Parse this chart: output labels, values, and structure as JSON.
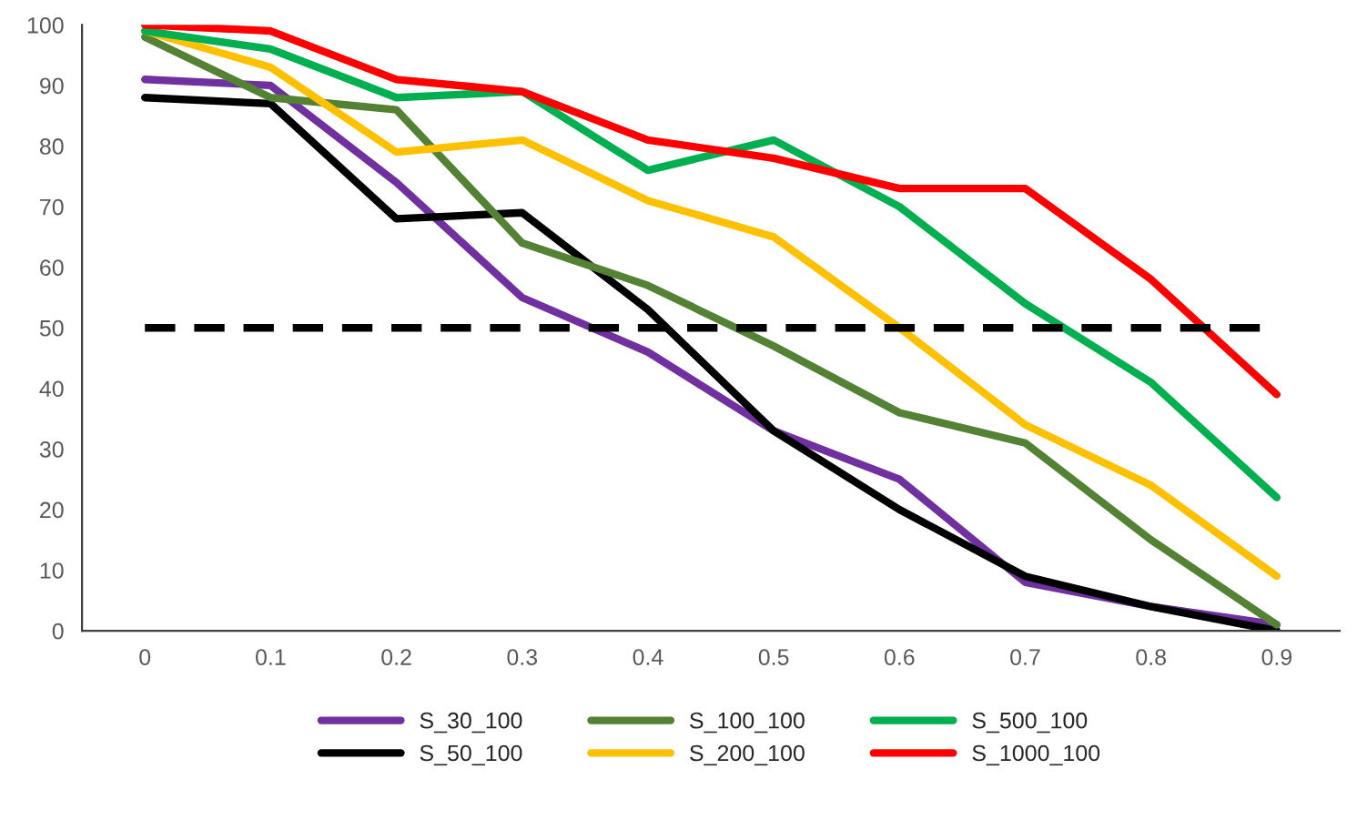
{
  "chart_data": {
    "type": "line",
    "categories": [
      "0",
      "0.1",
      "0.2",
      "0.3",
      "0.4",
      "0.5",
      "0.6",
      "0.7",
      "0.8",
      "0.9"
    ],
    "series": [
      {
        "name": "S_30_100",
        "color": "#7030a0",
        "values": [
          91,
          90,
          74,
          55,
          46,
          33,
          25,
          8,
          4,
          1
        ]
      },
      {
        "name": "S_50_100",
        "color": "#000000",
        "values": [
          88,
          87,
          68,
          69,
          53,
          33,
          20,
          9,
          4,
          0
        ]
      },
      {
        "name": "S_100_100",
        "color": "#548235",
        "values": [
          98,
          88,
          86,
          64,
          57,
          47,
          36,
          31,
          15,
          1
        ]
      },
      {
        "name": "S_200_100",
        "color": "#ffc000",
        "values": [
          99,
          93,
          79,
          81,
          71,
          65,
          50,
          34,
          24,
          9
        ]
      },
      {
        "name": "S_500_100",
        "color": "#00b050",
        "values": [
          99,
          96,
          88,
          89,
          76,
          81,
          70,
          54,
          41,
          22
        ]
      },
      {
        "name": "S_1000_100",
        "color": "#ff0000",
        "values": [
          100,
          99,
          91,
          89,
          81,
          78,
          73,
          73,
          58,
          39
        ]
      }
    ],
    "ref_lines": [
      {
        "axis": "y",
        "value": 50,
        "color": "#000000",
        "line_style": "dashed"
      }
    ],
    "ylim": [
      0,
      100
    ],
    "yticks": [
      0,
      10,
      20,
      30,
      40,
      50,
      60,
      70,
      80,
      90,
      100
    ],
    "grid": false,
    "legend": "bottom",
    "marker": "none",
    "line_style": "solid"
  }
}
